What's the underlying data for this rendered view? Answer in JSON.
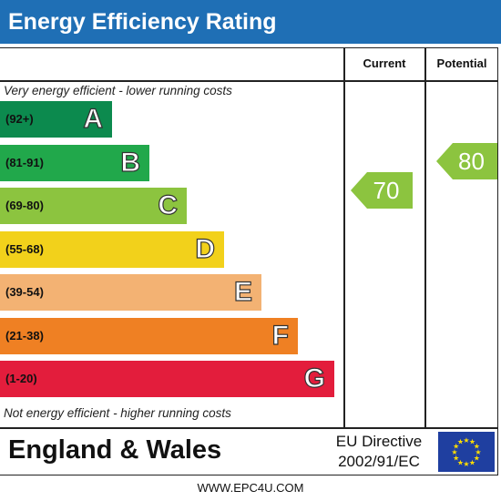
{
  "title": "Energy Efficiency Rating",
  "columns": {
    "current": "Current",
    "potential": "Potential"
  },
  "notes": {
    "top": "Very energy efficient - lower running costs",
    "bottom": "Not energy efficient - higher running costs"
  },
  "colors": {
    "header": "#1f6fb5",
    "A": "#0c8a4e",
    "B": "#21a84b",
    "C": "#8cc43f",
    "D": "#f2d11b",
    "E": "#f3b273",
    "F": "#ef8023",
    "G": "#e31d3c",
    "current_arrow": "#8cc43f",
    "potential_arrow": "#8cc43f"
  },
  "chart_data": {
    "type": "bar",
    "categories": [
      "A",
      "B",
      "C",
      "D",
      "E",
      "F",
      "G"
    ],
    "ranges": [
      "(92+)",
      "(81-91)",
      "(69-80)",
      "(55-68)",
      "(39-54)",
      "(21-38)",
      "(1-20)"
    ],
    "current": {
      "value": 70,
      "band": "C"
    },
    "potential": {
      "value": 80,
      "band": "C"
    }
  },
  "footer": {
    "region": "England & Wales",
    "directive_line1": "EU Directive",
    "directive_line2": "2002/91/EC",
    "website": "WWW.EPC4U.COM"
  }
}
